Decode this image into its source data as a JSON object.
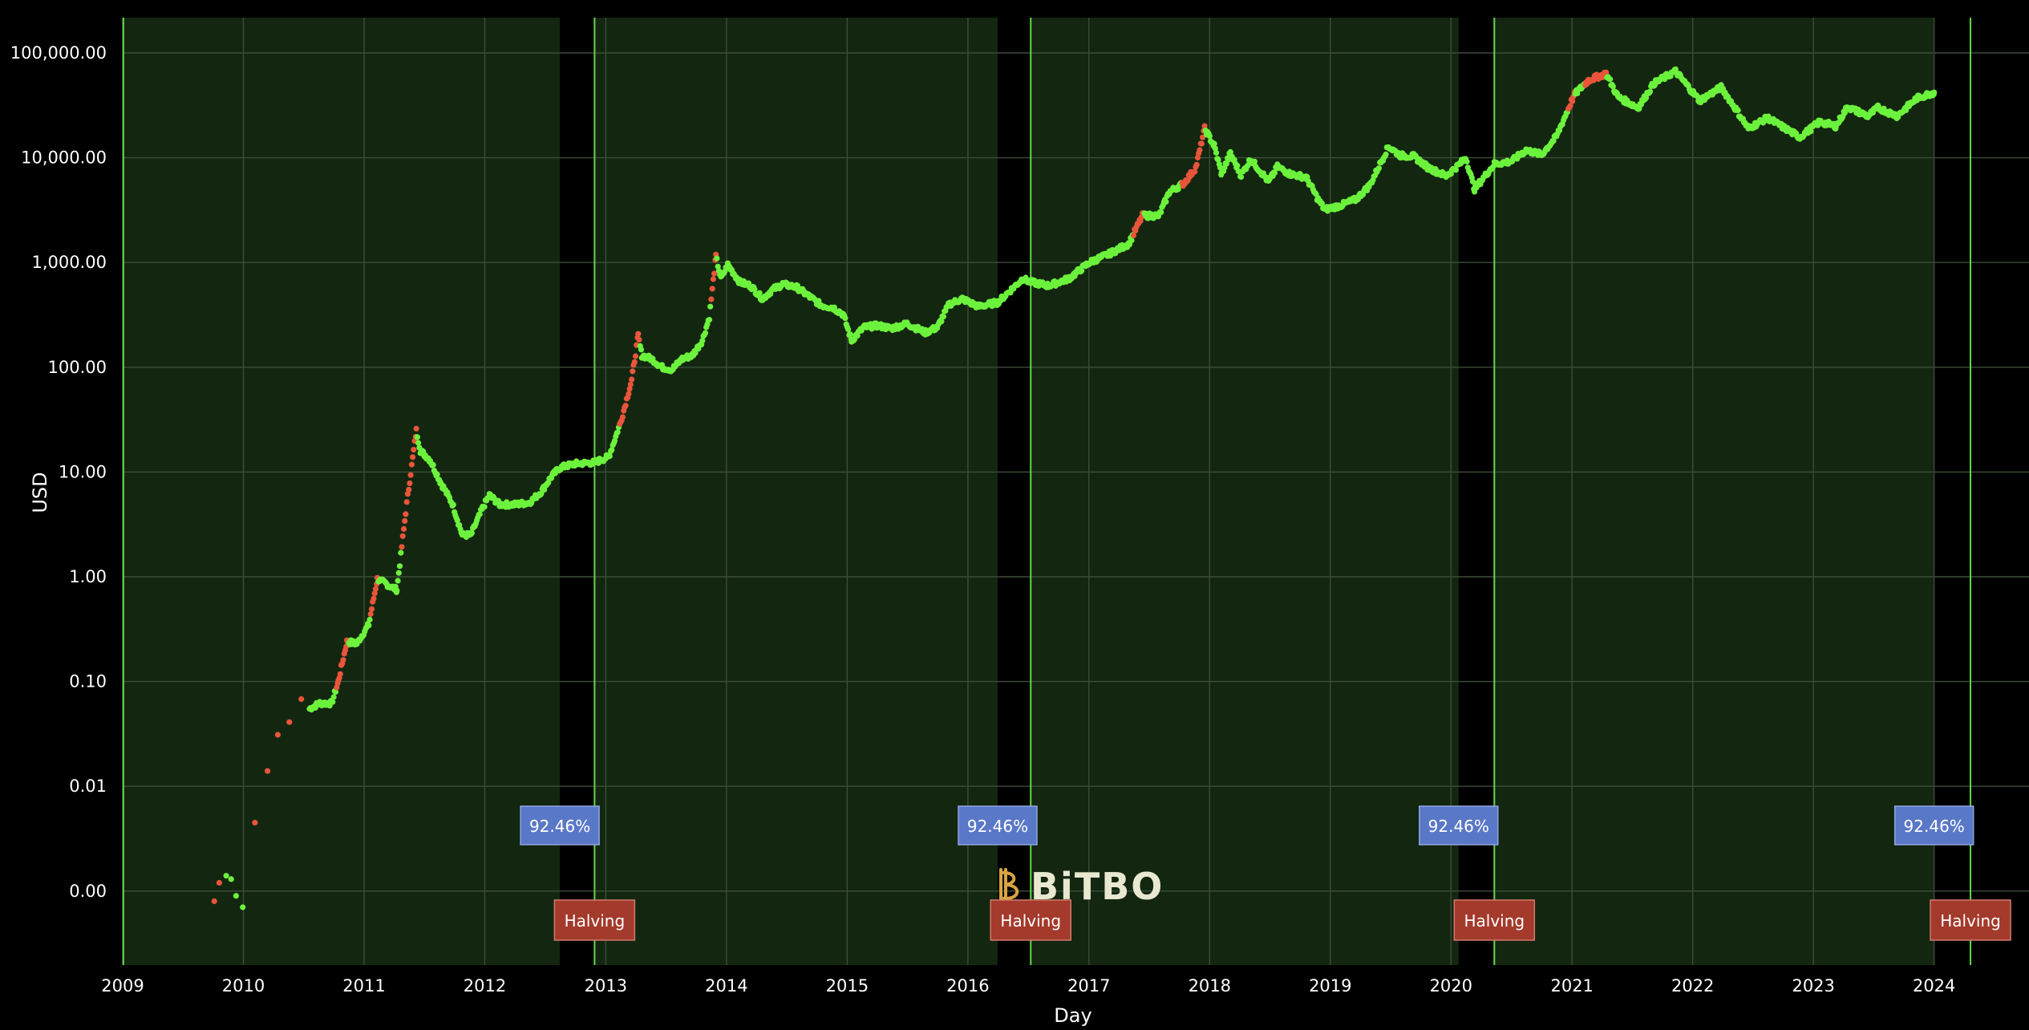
{
  "chart_data": {
    "type": "scatter",
    "xlabel": "Day",
    "ylabel": "USD",
    "y_scale": "log",
    "y_tick_labels": [
      "100,000.00",
      "10,000.00",
      "1,000.00",
      "100.00",
      "10.00",
      "1.00",
      "0.10",
      "0.01",
      "0.00"
    ],
    "y_tick_values": [
      100000,
      10000,
      1000,
      100,
      10,
      1,
      0.1,
      0.01,
      0.001
    ],
    "x_tick_labels": [
      "2009",
      "2010",
      "2011",
      "2012",
      "2013",
      "2014",
      "2015",
      "2016",
      "2017",
      "2018",
      "2019",
      "2020",
      "2021",
      "2022",
      "2023",
      "2024"
    ],
    "xlim": [
      "2009-01-01",
      "2024-06-01"
    ],
    "ylim": [
      0.0001,
      200000
    ],
    "grid": true,
    "colors": {
      "above": "#6cf23c",
      "peak": "#e8553a",
      "cycle_band": "#132610",
      "halving_line": "#63d94a",
      "percent_tag": "#5a78c8",
      "halving_tag": "#a33a2c",
      "logo": "#d9a441"
    },
    "halvings": [
      {
        "date": "2012-11-28",
        "label": "Halving"
      },
      {
        "date": "2016-07-09",
        "label": "Halving"
      },
      {
        "date": "2020-05-11",
        "label": "Halving"
      },
      {
        "date": "2024-04-20",
        "label": "Halving"
      }
    ],
    "cycle_tags": [
      {
        "date": "2012-08-15",
        "label": "92.46%"
      },
      {
        "date": "2016-03-31",
        "label": "92.46%"
      },
      {
        "date": "2020-01-24",
        "label": "92.46%"
      },
      {
        "date": "2024-01-01",
        "label": "92.46%"
      }
    ],
    "cycle_bands": [
      {
        "start": "2009-01-03",
        "end": "2012-08-15"
      },
      {
        "start": "2012-11-28",
        "end": "2016-03-31"
      },
      {
        "start": "2016-07-09",
        "end": "2020-01-24"
      },
      {
        "start": "2020-05-11",
        "end": "2024-01-01"
      }
    ],
    "price_series": [
      [
        "2009-10-05",
        0.0008
      ],
      [
        "2009-10-20",
        0.0012
      ],
      [
        "2009-11-10",
        0.0014
      ],
      [
        "2009-11-25",
        0.0013
      ],
      [
        "2009-12-10",
        0.0009
      ],
      [
        "2009-12-30",
        0.0007
      ],
      [
        "2010-02-05",
        0.0045
      ],
      [
        "2010-03-15",
        0.014
      ],
      [
        "2010-04-15",
        0.031
      ],
      [
        "2010-05-20",
        0.041
      ],
      [
        "2010-06-25",
        0.068
      ],
      [
        "2010-07-20",
        0.055
      ],
      [
        "2010-08-20",
        0.062
      ],
      [
        "2010-09-25",
        0.062
      ],
      [
        "2010-10-15",
        0.1
      ],
      [
        "2010-11-10",
        0.24
      ],
      [
        "2010-12-10",
        0.23
      ],
      [
        "2011-01-15",
        0.35
      ],
      [
        "2011-02-10",
        0.95
      ],
      [
        "2011-03-10",
        0.85
      ],
      [
        "2011-04-10",
        0.75
      ],
      [
        "2011-05-10",
        5.0
      ],
      [
        "2011-06-08",
        25
      ],
      [
        "2011-06-20",
        16
      ],
      [
        "2011-07-20",
        13
      ],
      [
        "2011-08-20",
        8
      ],
      [
        "2011-09-25",
        5
      ],
      [
        "2011-10-25",
        2.5
      ],
      [
        "2011-11-20",
        2.5
      ],
      [
        "2011-12-25",
        4.5
      ],
      [
        "2012-01-15",
        6.0
      ],
      [
        "2012-02-15",
        4.9
      ],
      [
        "2012-04-01",
        4.9
      ],
      [
        "2012-05-15",
        5.1
      ],
      [
        "2012-06-20",
        6.5
      ],
      [
        "2012-07-20",
        9
      ],
      [
        "2012-08-15",
        11
      ],
      [
        "2012-10-01",
        12
      ],
      [
        "2012-11-28",
        12.3
      ],
      [
        "2013-01-10",
        14
      ],
      [
        "2013-02-15",
        30
      ],
      [
        "2013-03-20",
        75
      ],
      [
        "2013-04-09",
        200
      ],
      [
        "2013-04-20",
        130
      ],
      [
        "2013-05-20",
        120
      ],
      [
        "2013-06-20",
        100
      ],
      [
        "2013-07-20",
        95
      ],
      [
        "2013-08-20",
        120
      ],
      [
        "2013-09-20",
        130
      ],
      [
        "2013-10-20",
        180
      ],
      [
        "2013-11-10",
        300
      ],
      [
        "2013-11-30",
        1150
      ],
      [
        "2013-12-15",
        700
      ],
      [
        "2014-01-05",
        950
      ],
      [
        "2014-02-10",
        650
      ],
      [
        "2014-03-15",
        600
      ],
      [
        "2014-04-20",
        450
      ],
      [
        "2014-05-20",
        550
      ],
      [
        "2014-06-20",
        620
      ],
      [
        "2014-08-01",
        580
      ],
      [
        "2014-09-10",
        470
      ],
      [
        "2014-10-15",
        390
      ],
      [
        "2014-11-20",
        370
      ],
      [
        "2014-12-20",
        320
      ],
      [
        "2015-01-14",
        180
      ],
      [
        "2015-02-20",
        240
      ],
      [
        "2015-04-01",
        250
      ],
      [
        "2015-05-15",
        235
      ],
      [
        "2015-07-01",
        260
      ],
      [
        "2015-08-25",
        215
      ],
      [
        "2015-10-01",
        240
      ],
      [
        "2015-11-05",
        400
      ],
      [
        "2015-12-15",
        450
      ],
      [
        "2016-02-01",
        380
      ],
      [
        "2016-03-31",
        415
      ],
      [
        "2016-06-15",
        700
      ],
      [
        "2016-07-09",
        650
      ],
      [
        "2016-09-01",
        600
      ],
      [
        "2016-11-01",
        700
      ],
      [
        "2017-01-03",
        1000
      ],
      [
        "2017-03-01",
        1200
      ],
      [
        "2017-05-01",
        1500
      ],
      [
        "2017-06-12",
        2800
      ],
      [
        "2017-08-01",
        2800
      ],
      [
        "2017-09-01",
        4700
      ],
      [
        "2017-10-15",
        5700
      ],
      [
        "2017-11-20",
        8000
      ],
      [
        "2017-12-17",
        19000
      ],
      [
        "2018-01-15",
        13000
      ],
      [
        "2018-02-06",
        7000
      ],
      [
        "2018-03-05",
        11000
      ],
      [
        "2018-04-06",
        6800
      ],
      [
        "2018-05-05",
        9700
      ],
      [
        "2018-06-29",
        5900
      ],
      [
        "2018-07-25",
        8200
      ],
      [
        "2018-09-01",
        7000
      ],
      [
        "2018-10-20",
        6500
      ],
      [
        "2018-11-25",
        4000
      ],
      [
        "2018-12-15",
        3200
      ],
      [
        "2019-02-01",
        3500
      ],
      [
        "2019-03-20",
        4000
      ],
      [
        "2019-05-01",
        5500
      ],
      [
        "2019-06-26",
        12800
      ],
      [
        "2019-08-01",
        10500
      ],
      [
        "2019-09-10",
        10300
      ],
      [
        "2019-10-25",
        8000
      ],
      [
        "2019-12-17",
        6700
      ],
      [
        "2020-01-24",
        8500
      ],
      [
        "2020-02-15",
        10000
      ],
      [
        "2020-03-12",
        5000
      ],
      [
        "2020-05-11",
        8700
      ],
      [
        "2020-07-01",
        9200
      ],
      [
        "2020-08-15",
        11800
      ],
      [
        "2020-10-01",
        10700
      ],
      [
        "2020-11-15",
        16000
      ],
      [
        "2021-01-08",
        40000
      ],
      [
        "2021-02-20",
        55000
      ],
      [
        "2021-04-14",
        63500
      ],
      [
        "2021-05-20",
        38000
      ],
      [
        "2021-07-20",
        30000
      ],
      [
        "2021-09-05",
        51000
      ],
      [
        "2021-11-10",
        67000
      ],
      [
        "2022-01-22",
        35000
      ],
      [
        "2022-03-28",
        47000
      ],
      [
        "2022-05-12",
        29000
      ],
      [
        "2022-06-18",
        19000
      ],
      [
        "2022-08-15",
        24000
      ],
      [
        "2022-11-21",
        15700
      ],
      [
        "2023-01-20",
        22000
      ],
      [
        "2023-03-10",
        20000
      ],
      [
        "2023-04-14",
        30500
      ],
      [
        "2023-06-15",
        25000
      ],
      [
        "2023-07-15",
        30000
      ],
      [
        "2023-09-11",
        25000
      ],
      [
        "2023-11-10",
        37000
      ],
      [
        "2024-01-01",
        42000
      ]
    ],
    "peak_ranges": [
      [
        "2009-10-05",
        "2009-10-25"
      ],
      [
        "2010-02-01",
        "2010-07-01"
      ],
      [
        "2010-10-10",
        "2010-11-15"
      ],
      [
        "2011-01-20",
        "2011-02-12"
      ],
      [
        "2011-04-25",
        "2011-06-10"
      ],
      [
        "2013-02-10",
        "2013-04-12"
      ],
      [
        "2013-11-15",
        "2013-12-02"
      ],
      [
        "2017-05-15",
        "2017-06-15"
      ],
      [
        "2017-10-10",
        "2017-12-17"
      ],
      [
        "2020-12-20",
        "2021-01-10"
      ],
      [
        "2021-02-10",
        "2021-04-14"
      ]
    ],
    "watermark": "BiTBO"
  }
}
